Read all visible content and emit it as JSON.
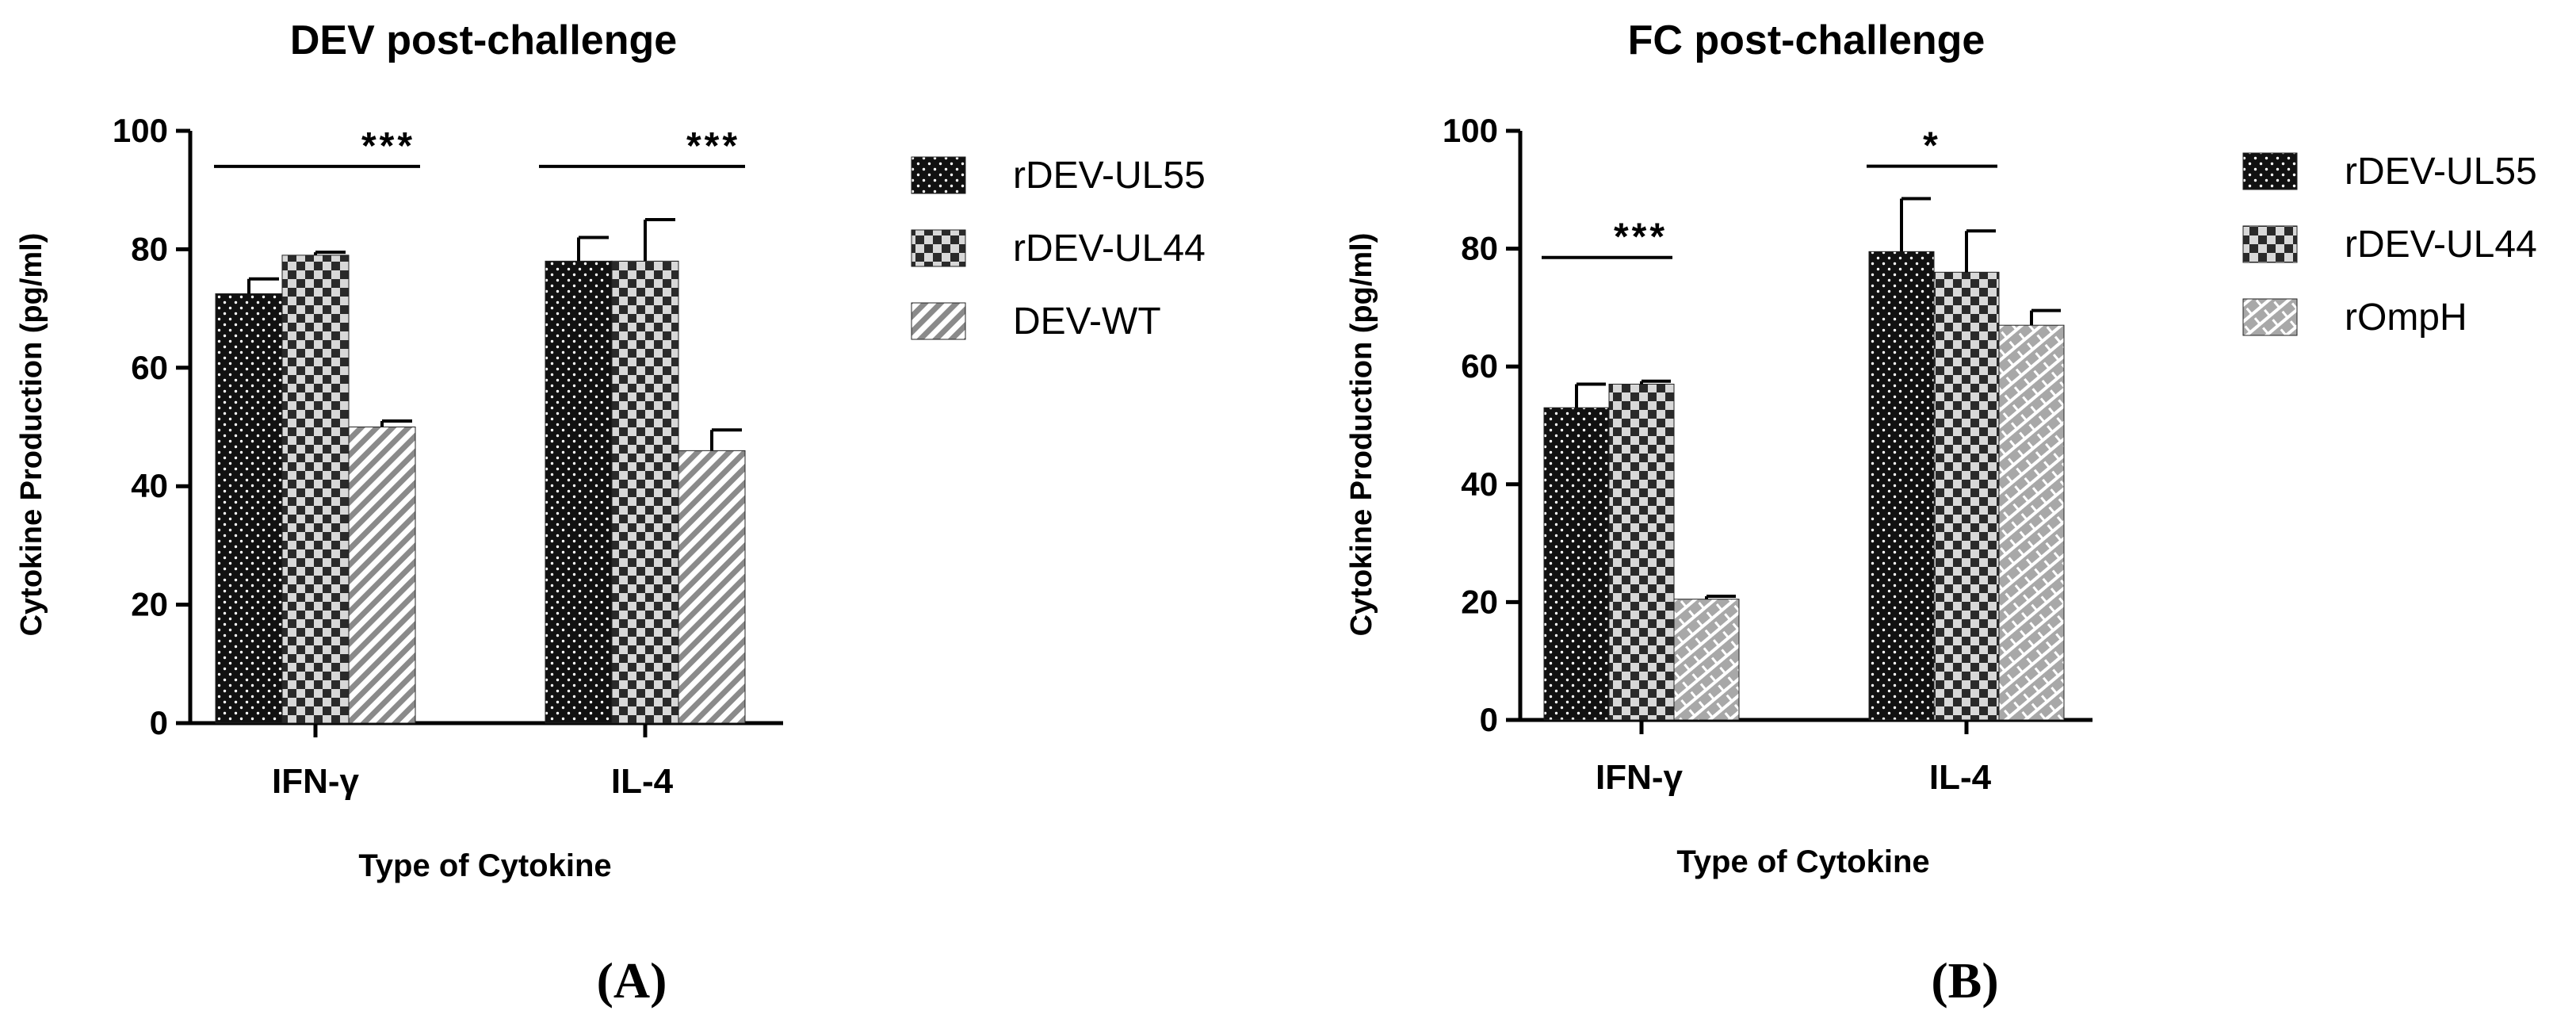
{
  "colors": {
    "ink": "#000000",
    "bar_fill": "#1a1a1a",
    "bar_checker_fill": "#3a3a3a",
    "bar_light_fill": "#9a9a9a",
    "paper": "#ffffff"
  },
  "chart_data": [
    {
      "id": "A",
      "type": "bar",
      "title": "DEV post-challenge",
      "panel_label": "(A)",
      "xlabel": "Type of Cytokine",
      "ylabel": "Cytokine Production (pg/ml)",
      "ylim": [
        0,
        100
      ],
      "yticks": [
        0,
        20,
        40,
        60,
        80,
        100
      ],
      "categories": [
        "IFN-γ",
        "IL-4"
      ],
      "series": [
        {
          "name": "rDEV-UL55",
          "pattern": "dots",
          "values": [
            72.5,
            78
          ],
          "errors": [
            2.5,
            4
          ]
        },
        {
          "name": "rDEV-UL44",
          "pattern": "checker",
          "values": [
            79,
            78
          ],
          "errors": [
            0.5,
            7
          ]
        },
        {
          "name": "DEV-WT",
          "pattern": "diag",
          "values": [
            50,
            46
          ],
          "errors": [
            1,
            3.5
          ]
        }
      ],
      "significance": [
        {
          "category_index": 0,
          "label": "***",
          "y": 94
        },
        {
          "category_index": 1,
          "label": "***",
          "y": 94
        }
      ]
    },
    {
      "id": "B",
      "type": "bar",
      "title": "FC post-challenge",
      "panel_label": "(B)",
      "xlabel": "Type of Cytokine",
      "ylabel": "Cytokine Production (pg/ml)",
      "ylim": [
        0,
        100
      ],
      "yticks": [
        0,
        20,
        40,
        60,
        80,
        100
      ],
      "categories": [
        "IFN-γ",
        "IL-4"
      ],
      "series": [
        {
          "name": "rDEV-UL55",
          "pattern": "dots",
          "values": [
            53,
            79.5
          ],
          "errors": [
            4,
            9
          ]
        },
        {
          "name": "rDEV-UL44",
          "pattern": "checker",
          "values": [
            57,
            76
          ],
          "errors": [
            0.5,
            7
          ]
        },
        {
          "name": "rOmpH",
          "pattern": "brick",
          "values": [
            20.5,
            67
          ],
          "errors": [
            0.5,
            2.5
          ]
        }
      ],
      "significance": [
        {
          "category_index": 0,
          "label": "***",
          "y": 78.5
        },
        {
          "category_index": 1,
          "label": "*",
          "y": 94
        }
      ]
    }
  ]
}
